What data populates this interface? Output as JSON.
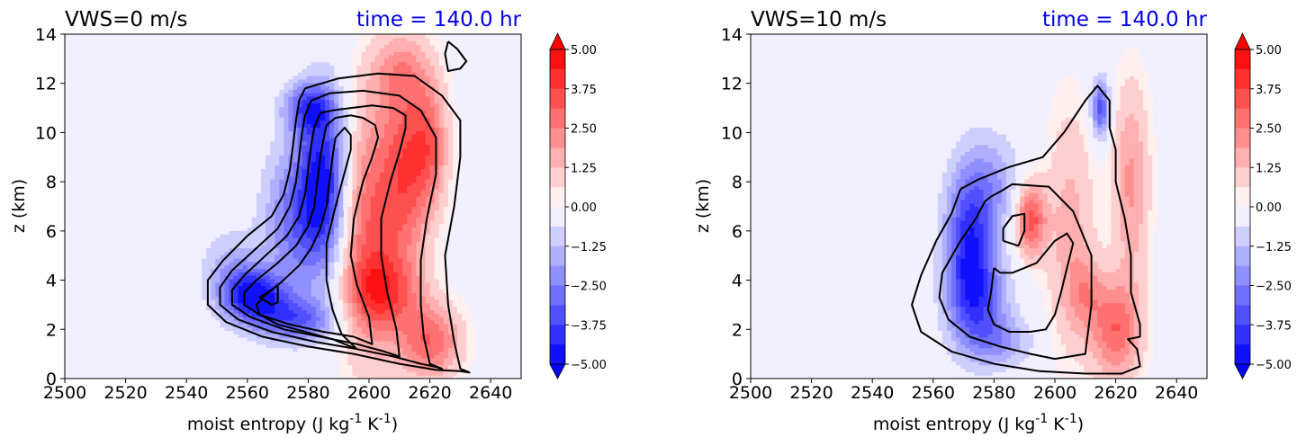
{
  "chart_data": [
    {
      "type": "heatmap",
      "title_left": "VWS=0 m/s",
      "title_right": "time = 140.0 hr",
      "xlabel": "moist entropy (J kg",
      "xlabel_unit_parts": [
        "-1",
        " K",
        "-1",
        ")"
      ],
      "ylabel": "z (km)",
      "xlim": [
        2500,
        2650
      ],
      "ylim": [
        0,
        14
      ],
      "xticks": [
        "2500",
        "2520",
        "2540",
        "2560",
        "2580",
        "2600",
        "2620",
        "2640"
      ],
      "yticks": [
        "0",
        "2",
        "4",
        "6",
        "8",
        "10",
        "12",
        "14"
      ],
      "colorbar": {
        "range": [
          -5.0,
          5.0
        ],
        "ticks": [
          "5.00",
          "3.75",
          "2.50",
          "1.25",
          "0.00",
          "−1.25",
          "−2.50",
          "−3.75",
          "−5.00"
        ],
        "extend": "both",
        "colormap": "bwr",
        "background_color": "#f0f0ff"
      },
      "filled_features": [
        {
          "s": 2585,
          "z": 8.0,
          "ws": 8,
          "wz": 3.5,
          "v": -4.5
        },
        {
          "s": 2575,
          "z": 6.5,
          "ws": 10,
          "wz": 3.0,
          "v": -2.5
        },
        {
          "s": 2562,
          "z": 3.4,
          "ws": 10,
          "wz": 1.0,
          "v": -4.5
        },
        {
          "s": 2575,
          "z": 2.4,
          "ws": 14,
          "wz": 0.9,
          "v": -3.0
        },
        {
          "s": 2555,
          "z": 4.5,
          "ws": 10,
          "wz": 1.5,
          "v": -1.5
        },
        {
          "s": 2580,
          "z": 11.0,
          "ws": 8,
          "wz": 1.0,
          "v": -3.0
        },
        {
          "s": 2600,
          "z": 6.0,
          "ws": 10,
          "wz": 5.0,
          "v": 3.0
        },
        {
          "s": 2612,
          "z": 8.5,
          "ws": 8,
          "wz": 4.0,
          "v": 3.0
        },
        {
          "s": 2605,
          "z": 3.5,
          "ws": 12,
          "wz": 1.5,
          "v": 2.5
        },
        {
          "s": 2620,
          "z": 1.5,
          "ws": 10,
          "wz": 1.5,
          "v": 3.0
        },
        {
          "s": 2620,
          "z": 9.5,
          "ws": 6,
          "wz": 2.5,
          "v": 2.5
        },
        {
          "s": 2610,
          "z": 12.5,
          "ws": 10,
          "wz": 1.5,
          "v": 1.5
        }
      ],
      "contours": [
        {
          "s": [
            2579,
            2577,
            2576,
            2575,
            2574,
            2572,
            2568,
            2560,
            2552,
            2547,
            2547,
            2553,
            2565,
            2580,
            2595,
            2610,
            2622,
            2630,
            2633,
            2630,
            2628,
            2626,
            2625,
            2628,
            2630,
            2630,
            2624,
            2615,
            2603,
            2590,
            2579
          ],
          "z": [
            11.8,
            11.3,
            10.5,
            9.5,
            8.5,
            7.5,
            6.6,
            5.8,
            4.8,
            4.0,
            3.0,
            2.3,
            1.7,
            1.3,
            1.0,
            0.6,
            0.35,
            0.3,
            0.25,
            0.4,
            1.5,
            3.0,
            5.0,
            7.0,
            9.0,
            10.5,
            11.5,
            12.3,
            12.4,
            12.2,
            11.8
          ]
        },
        {
          "s": [
            2581,
            2579,
            2578,
            2577,
            2576,
            2574,
            2570,
            2563,
            2555,
            2551,
            2551,
            2557,
            2568,
            2582,
            2596,
            2608,
            2617,
            2621,
            2624,
            2620,
            2618,
            2617,
            2617,
            2619,
            2622,
            2622,
            2617,
            2610,
            2598,
            2587,
            2581
          ],
          "z": [
            11.3,
            10.7,
            10.0,
            9.0,
            8.0,
            7.0,
            6.1,
            5.3,
            4.4,
            3.7,
            3.0,
            2.4,
            1.9,
            1.5,
            1.2,
            0.9,
            0.6,
            0.5,
            0.4,
            0.6,
            1.7,
            3.0,
            4.8,
            6.5,
            8.3,
            9.8,
            10.9,
            11.5,
            11.7,
            11.6,
            11.3
          ]
        },
        {
          "s": [
            2584,
            2582,
            2581,
            2580,
            2579,
            2577,
            2573,
            2566,
            2559,
            2555,
            2555,
            2561,
            2572,
            2584,
            2596,
            2605,
            2610,
            2609,
            2606,
            2604,
            2604,
            2607,
            2610,
            2612,
            2612,
            2608,
            2601,
            2594,
            2588,
            2584
          ],
          "z": [
            10.8,
            10.2,
            9.5,
            8.5,
            7.5,
            6.6,
            5.8,
            5.0,
            4.2,
            3.6,
            3.0,
            2.5,
            2.0,
            1.7,
            1.4,
            1.1,
            0.9,
            2.0,
            3.5,
            5.0,
            6.5,
            8.0,
            9.2,
            10.2,
            10.7,
            11.0,
            11.1,
            11.0,
            10.9,
            10.8
          ]
        },
        {
          "s": [
            2586,
            2585,
            2584,
            2583,
            2582,
            2580,
            2576,
            2570,
            2563,
            2559,
            2559,
            2564,
            2574,
            2585,
            2595,
            2601,
            2600,
            2596,
            2594,
            2595,
            2598,
            2601,
            2603,
            2602,
            2598,
            2594,
            2589,
            2586
          ],
          "z": [
            10.3,
            9.7,
            9.0,
            8.0,
            7.0,
            6.2,
            5.4,
            4.7,
            4.0,
            3.5,
            3.0,
            2.6,
            2.2,
            1.9,
            1.7,
            1.4,
            2.5,
            3.8,
            5.0,
            6.5,
            8.0,
            9.0,
            9.8,
            10.3,
            10.6,
            10.7,
            10.6,
            10.3
          ]
        },
        {
          "s": [
            2589,
            2588,
            2587,
            2586,
            2584,
            2581,
            2577,
            2571,
            2566,
            2563,
            2564,
            2570,
            2579,
            2588,
            2596,
            2591,
            2588,
            2586,
            2586,
            2589,
            2592,
            2594,
            2594,
            2592,
            2589
          ],
          "z": [
            9.8,
            9.0,
            8.0,
            7.0,
            6.1,
            5.3,
            4.6,
            3.9,
            3.4,
            3.0,
            2.6,
            2.2,
            1.9,
            1.6,
            1.2,
            1.8,
            2.8,
            4.0,
            5.5,
            7.0,
            8.4,
            9.3,
            9.9,
            10.2,
            9.8
          ]
        },
        {
          "s": [
            2570,
            2568,
            2564,
            2568,
            2570,
            2570
          ],
          "z": [
            3.8,
            3.6,
            3.3,
            3.0,
            3.1,
            3.8
          ]
        },
        {
          "s": [
            2626,
            2629,
            2632,
            2630,
            2626,
            2625,
            2626
          ],
          "z": [
            13.7,
            13.4,
            12.9,
            12.6,
            12.5,
            13.2,
            13.7
          ]
        }
      ]
    },
    {
      "type": "heatmap",
      "title_left": "VWS=10 m/s",
      "title_right": "time = 140.0 hr",
      "xlabel": "moist entropy (J kg",
      "xlabel_unit_parts": [
        "-1",
        " K",
        "-1",
        ")"
      ],
      "ylabel": "z (km)",
      "xlim": [
        2500,
        2650
      ],
      "ylim": [
        0,
        14
      ],
      "xticks": [
        "2500",
        "2520",
        "2540",
        "2560",
        "2580",
        "2600",
        "2620",
        "2640"
      ],
      "yticks": [
        "0",
        "2",
        "4",
        "6",
        "8",
        "10",
        "12",
        "14"
      ],
      "colorbar": {
        "range": [
          -5.0,
          5.0
        ],
        "ticks": [
          "5.00",
          "3.75",
          "2.50",
          "1.25",
          "0.00",
          "−1.25",
          "−2.50",
          "−3.75",
          "−5.00"
        ],
        "extend": "both",
        "colormap": "bwr",
        "background_color": "#f0f0ff"
      },
      "filled_features": [
        {
          "s": 2572,
          "z": 5.5,
          "ws": 8,
          "wz": 3.0,
          "v": -4.0
        },
        {
          "s": 2575,
          "z": 3.0,
          "ws": 10,
          "wz": 2.0,
          "v": -2.5
        },
        {
          "s": 2580,
          "z": 8.0,
          "ws": 10,
          "wz": 2.0,
          "v": -1.5
        },
        {
          "s": 2583,
          "z": 1.5,
          "ws": 10,
          "wz": 1.0,
          "v": -1.5
        },
        {
          "s": 2615,
          "z": 11.0,
          "ws": 3,
          "wz": 1.2,
          "v": -3.5
        },
        {
          "s": 2592,
          "z": 6.5,
          "ws": 5,
          "wz": 1.5,
          "v": 3.5
        },
        {
          "s": 2605,
          "z": 6.0,
          "ws": 8,
          "wz": 5.0,
          "v": 1.5
        },
        {
          "s": 2620,
          "z": 2.0,
          "ws": 8,
          "wz": 2.0,
          "v": 3.0
        },
        {
          "s": 2625,
          "z": 8.0,
          "ws": 6,
          "wz": 4.0,
          "v": 2.0
        },
        {
          "s": 2610,
          "z": 3.5,
          "ws": 6,
          "wz": 1.5,
          "v": 1.5
        }
      ],
      "contours": [
        {
          "s": [
            2569,
            2566,
            2561,
            2556,
            2553,
            2556,
            2566,
            2580,
            2595,
            2610,
            2622,
            2628,
            2627,
            2624,
            2628,
            2628,
            2625,
            2625,
            2623,
            2620,
            2620,
            2618,
            2618,
            2614,
            2610,
            2603,
            2596,
            2585,
            2575,
            2569
          ],
          "z": [
            7.7,
            6.7,
            5.6,
            4.2,
            3.0,
            1.9,
            1.1,
            0.6,
            0.3,
            0.2,
            0.2,
            0.5,
            1.2,
            1.6,
            1.7,
            2.2,
            3.5,
            5.0,
            6.5,
            8.0,
            9.3,
            10.2,
            11.3,
            11.9,
            11.3,
            10.0,
            9.0,
            8.6,
            8.1,
            7.7
          ]
        },
        {
          "s": [
            2577,
            2574,
            2569,
            2563,
            2562,
            2565,
            2572,
            2582,
            2592,
            2600,
            2610,
            2612,
            2612,
            2606,
            2598,
            2586,
            2582,
            2579,
            2577
          ],
          "z": [
            7.2,
            6.5,
            5.6,
            4.3,
            3.3,
            2.4,
            1.7,
            1.3,
            1.0,
            0.8,
            1.0,
            3.0,
            5.0,
            6.8,
            7.8,
            7.9,
            7.6,
            7.4,
            7.2
          ]
        },
        {
          "s": [
            2580,
            2579,
            2578,
            2580,
            2585,
            2592,
            2597,
            2600,
            2602,
            2604,
            2606,
            2604,
            2600,
            2594,
            2586,
            2582,
            2580
          ],
          "z": [
            4.5,
            3.5,
            2.8,
            2.2,
            1.9,
            1.9,
            2.0,
            2.6,
            3.5,
            4.5,
            5.5,
            5.9,
            5.6,
            4.7,
            4.3,
            4.3,
            4.5
          ]
        },
        {
          "s": [
            2583,
            2588,
            2590,
            2590,
            2586,
            2583,
            2583
          ],
          "z": [
            5.6,
            5.4,
            6.0,
            6.7,
            6.6,
            6.1,
            5.6
          ]
        }
      ]
    }
  ]
}
